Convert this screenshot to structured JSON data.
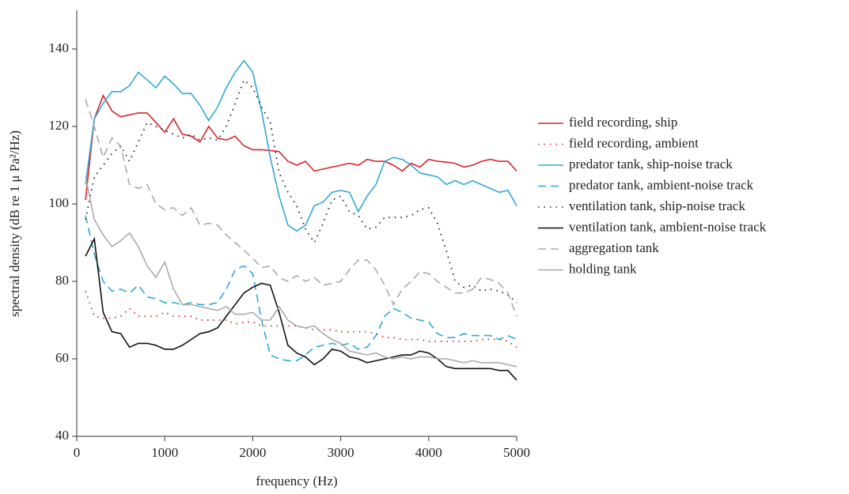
{
  "chart_data": {
    "type": "line",
    "xlabel": "frequency (Hz)",
    "ylabel": "spectral density (dB re 1 μ Pa²/Hz)",
    "xlim": [
      0,
      5000
    ],
    "ylim": [
      40,
      150
    ],
    "xticks": [
      0,
      1000,
      2000,
      3000,
      4000,
      5000
    ],
    "yticks": [
      40,
      60,
      80,
      100,
      120,
      140
    ],
    "legend": "right",
    "x": [
      100,
      200,
      300,
      400,
      500,
      600,
      700,
      800,
      900,
      1000,
      1100,
      1200,
      1300,
      1400,
      1500,
      1600,
      1700,
      1800,
      1900,
      2000,
      2100,
      2200,
      2300,
      2400,
      2500,
      2600,
      2700,
      2800,
      2900,
      3000,
      3100,
      3200,
      3300,
      3400,
      3500,
      3600,
      3700,
      3800,
      3900,
      4000,
      4100,
      4200,
      4300,
      4400,
      4500,
      4600,
      4700,
      4800,
      4900,
      5000
    ],
    "series": [
      {
        "name": "field recording, ship",
        "color": "#d62728",
        "dash": "solid",
        "values": [
          101,
          122,
          128,
          124,
          122.5,
          123,
          123.5,
          123.5,
          121,
          118.5,
          122,
          118,
          117.5,
          116,
          120,
          117,
          116.5,
          117.5,
          115,
          114,
          114,
          113.8,
          113.5,
          111,
          110,
          111,
          108.5,
          109,
          109.5,
          110,
          110.5,
          110,
          111.5,
          111,
          111,
          110,
          108.5,
          110.5,
          109.5,
          111.5,
          111,
          110.8,
          110.5,
          109.5,
          110,
          111,
          111.5,
          111,
          111,
          108.5
        ]
      },
      {
        "name": "field recording, ambient",
        "color": "#d62728",
        "dash": "dotted",
        "values": [
          77.5,
          71,
          70.5,
          70.5,
          71,
          73,
          71,
          71,
          71,
          72,
          71,
          71,
          71,
          70,
          70,
          70,
          70,
          69,
          69.5,
          69.5,
          68.5,
          68.5,
          68.5,
          68.5,
          68.5,
          68,
          67.5,
          67.5,
          67.5,
          67,
          67,
          67,
          67,
          66.5,
          65.5,
          65.5,
          65,
          65,
          65,
          64.5,
          64.5,
          64.5,
          64.5,
          64.5,
          64.5,
          65,
          65,
          65,
          64.5,
          63
        ]
      },
      {
        "name": "predator tank, ship-noise track",
        "color": "#2fa8d8",
        "dash": "solid",
        "values": [
          105,
          122,
          126,
          129,
          129,
          130.5,
          134,
          132,
          130,
          133,
          131,
          128.5,
          128.5,
          125.5,
          121.5,
          125,
          130,
          134,
          137,
          134,
          124,
          112,
          102,
          94.5,
          93,
          94.5,
          99.5,
          100.5,
          103,
          103.5,
          103,
          98,
          102,
          105,
          111,
          112,
          111.5,
          110,
          108,
          107.5,
          107,
          105,
          106,
          105,
          106,
          105,
          104,
          103,
          103.5,
          99.5
        ]
      },
      {
        "name": "predator tank, ambient-noise track",
        "color": "#2fa8d8",
        "dash": "dashed",
        "values": [
          97,
          87,
          80,
          77.5,
          78,
          77,
          79,
          76,
          75.5,
          74.5,
          74.5,
          74,
          74.5,
          74,
          74,
          74.5,
          78,
          83,
          84,
          82,
          70,
          61,
          60,
          59.5,
          59.5,
          61,
          63,
          63.5,
          64,
          63.5,
          64,
          62.5,
          63,
          66,
          71,
          73,
          72,
          70.5,
          70,
          69.5,
          66.5,
          65.5,
          65.5,
          66.5,
          66,
          66,
          66,
          65,
          66,
          65
        ]
      },
      {
        "name": "ventilation tank, ship-noise track",
        "color": "#222222",
        "dash": "dotted",
        "values": [
          96,
          107,
          110,
          113,
          115,
          111,
          116,
          121,
          120,
          119,
          118,
          117,
          118,
          116.5,
          117,
          116.5,
          120,
          126,
          132,
          130,
          125,
          121,
          108,
          103,
          99.5,
          93.5,
          90,
          95,
          101,
          102,
          98,
          97,
          93.5,
          94,
          96.5,
          96.5,
          96.5,
          97,
          98.5,
          99,
          95,
          88,
          80,
          78.5,
          79,
          77.5,
          78,
          77.5,
          76.5,
          74.5
        ]
      },
      {
        "name": "ventilation tank, ambient-noise track",
        "color": "#111111",
        "dash": "solid",
        "values": [
          86.5,
          91,
          72,
          67,
          66.5,
          63,
          64,
          64,
          63.5,
          62.5,
          62.5,
          63.5,
          65,
          66.5,
          67,
          68,
          71,
          74,
          77,
          78.5,
          79.5,
          79,
          72,
          63.5,
          61.5,
          60.5,
          58.5,
          60,
          62.5,
          62,
          60.5,
          60,
          59,
          59.5,
          60,
          60.5,
          61,
          61,
          62,
          61.5,
          60,
          58,
          57.5,
          57.5,
          57.5,
          57.5,
          57.5,
          57,
          57,
          54.5
        ]
      },
      {
        "name": "aggregation tank",
        "color": "#aaaaaa",
        "dash": "dashed",
        "values": [
          127,
          120,
          112,
          117,
          115,
          105,
          104,
          105,
          100,
          98.5,
          99,
          97,
          99,
          94.5,
          95,
          94.5,
          92,
          90,
          88,
          86,
          83.5,
          84,
          81,
          80,
          81.5,
          80,
          81,
          79,
          79.5,
          80,
          83,
          85.5,
          85.5,
          83,
          79,
          74,
          78,
          80,
          82.5,
          82,
          80,
          78.5,
          77,
          77,
          78,
          81,
          80.5,
          79.5,
          77,
          71
        ]
      },
      {
        "name": "holding tank",
        "color": "#aaaaaa",
        "dash": "solid",
        "values": [
          107,
          96,
          92,
          89,
          90.5,
          92.5,
          89,
          84,
          81,
          85,
          78,
          74,
          74,
          73.5,
          73,
          72.5,
          73.5,
          71.5,
          71.5,
          72,
          70,
          70,
          73.5,
          70,
          68.5,
          68,
          68.5,
          66.5,
          65,
          64,
          62,
          61.5,
          61,
          61.5,
          60.5,
          60,
          60.5,
          60,
          60.5,
          60.5,
          60,
          60,
          59.5,
          59,
          59.5,
          59,
          59,
          59,
          58.5,
          58
        ]
      }
    ]
  }
}
